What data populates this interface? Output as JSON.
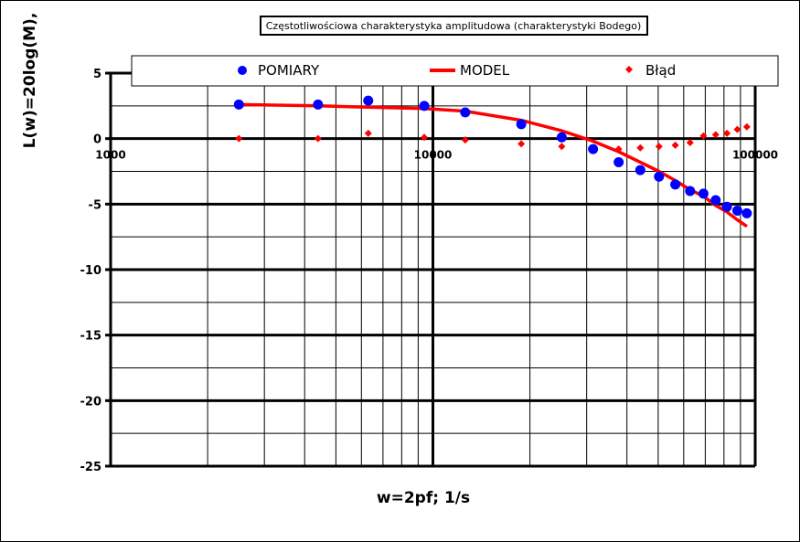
{
  "chart_data": {
    "type": "scatter",
    "title": "Częstotliwościowa charakterystyka amplitudowa (charakterystyki Bodego)",
    "xlabel": "w=2pf; 1/s",
    "ylabel": "L(w)=20log(M),",
    "x_scale": "log",
    "xlim": [
      1000,
      100000
    ],
    "ylim": [
      -25,
      5
    ],
    "x_ticks": [
      "1000",
      "10000",
      "100000"
    ],
    "y_ticks": [
      "5",
      "0",
      "-5",
      "-10",
      "-15",
      "-20",
      "-25"
    ],
    "grid": true,
    "legend_position": "top",
    "series": [
      {
        "name": "POMIARY",
        "kind": "points",
        "color": "#0000ff",
        "marker": "circle",
        "x": [
          2500,
          4400,
          6300,
          9400,
          12600,
          18800,
          25100,
          31400,
          37700,
          44000,
          50300,
          56500,
          62800,
          69100,
          75400,
          81700,
          88000,
          94200
        ],
        "y": [
          2.6,
          2.6,
          2.9,
          2.5,
          2.0,
          1.1,
          0.1,
          -0.8,
          -1.8,
          -2.4,
          -2.9,
          -3.5,
          -4.0,
          -4.2,
          -4.7,
          -5.2,
          -5.5,
          -5.7
        ]
      },
      {
        "name": "MODEL",
        "kind": "line",
        "color": "#ff0000",
        "x": [
          2500,
          4400,
          6300,
          9400,
          12600,
          18800,
          25100,
          31400,
          37700,
          44000,
          50300,
          56500,
          62800,
          69100,
          75400,
          81700,
          88000,
          94200
        ],
        "y": [
          2.6,
          2.5,
          2.4,
          2.3,
          2.1,
          1.4,
          0.6,
          -0.2,
          -1.0,
          -1.8,
          -2.5,
          -3.2,
          -3.9,
          -4.4,
          -5.1,
          -5.6,
          -6.2,
          -6.7
        ]
      },
      {
        "name": "Błąd",
        "kind": "points",
        "color": "#ff0000",
        "marker": "diamond",
        "x": [
          2500,
          4400,
          6300,
          9400,
          12600,
          18800,
          25100,
          37700,
          44000,
          50300,
          56500,
          62800,
          69100,
          75400,
          81700,
          88000,
          94200
        ],
        "y": [
          0.0,
          0.0,
          0.4,
          0.1,
          -0.1,
          -0.4,
          -0.6,
          -0.8,
          -0.7,
          -0.6,
          -0.5,
          -0.3,
          0.2,
          0.3,
          0.4,
          0.7,
          0.9
        ]
      }
    ]
  }
}
